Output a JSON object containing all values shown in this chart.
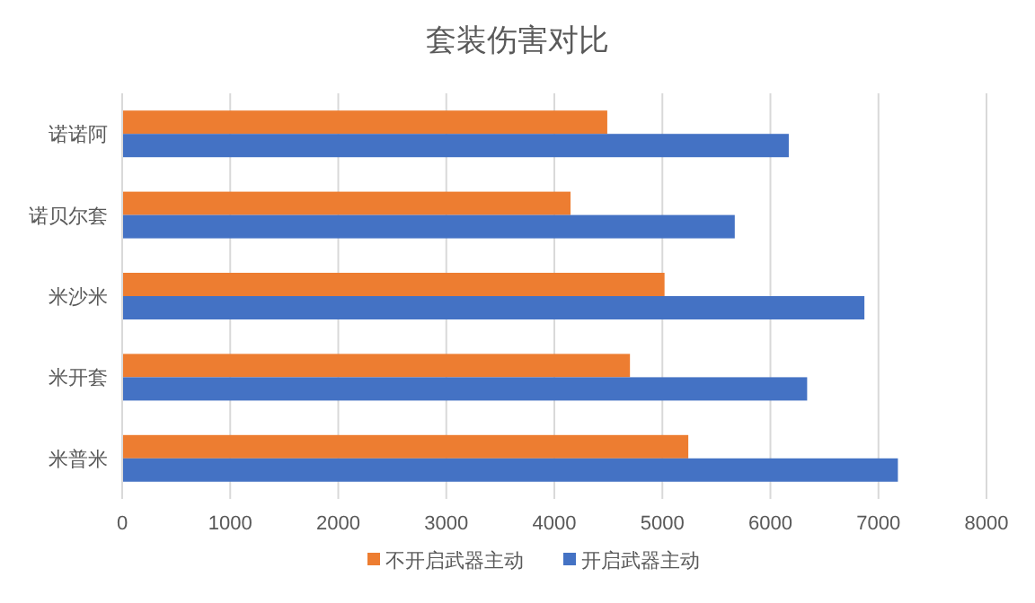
{
  "chart_data": {
    "type": "bar",
    "orientation": "horizontal",
    "title": "套装伤害对比",
    "categories": [
      "诺诺阿",
      "诺贝尔套",
      "米沙米",
      "米开套",
      "米普米"
    ],
    "series": [
      {
        "name": "不开启武器主动",
        "color": "#ed7d31",
        "values": [
          4490,
          4150,
          5020,
          4700,
          5240
        ]
      },
      {
        "name": "开启武器主动",
        "color": "#4472c4",
        "values": [
          6170,
          5670,
          6870,
          6340,
          7180
        ]
      }
    ],
    "xlim": [
      0,
      8000
    ],
    "xticks": [
      0,
      1000,
      2000,
      3000,
      4000,
      5000,
      6000,
      7000,
      8000
    ],
    "grid": "x",
    "legend": "bottom"
  }
}
